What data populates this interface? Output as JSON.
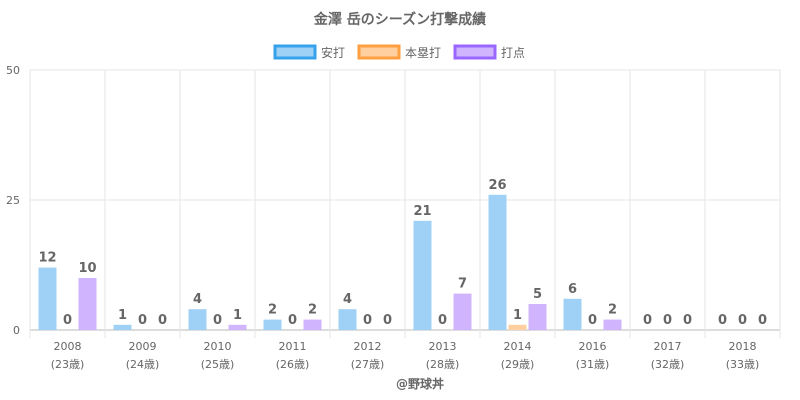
{
  "chart_data": {
    "type": "bar",
    "title": "金澤 岳のシーズン打撃成績",
    "categories": [
      "2008",
      "2009",
      "2010",
      "2011",
      "2012",
      "2013",
      "2014",
      "2016",
      "2017",
      "2018"
    ],
    "category_sub": [
      "(23歳)",
      "(24歳)",
      "(25歳)",
      "(26歳)",
      "(27歳)",
      "(28歳)",
      "(29歳)",
      "(31歳)",
      "(32歳)",
      "(33歳)"
    ],
    "series": [
      {
        "name": "安打",
        "values": [
          12,
          1,
          4,
          2,
          4,
          21,
          26,
          6,
          0,
          0
        ],
        "color": "#9fd0f5",
        "border": "#36a2eb"
      },
      {
        "name": "本塁打",
        "values": [
          0,
          0,
          0,
          0,
          0,
          0,
          1,
          0,
          0,
          0
        ],
        "color": "#ffcf9f",
        "border": "#ff9f40"
      },
      {
        "name": "打点",
        "values": [
          10,
          0,
          1,
          2,
          0,
          7,
          5,
          2,
          0,
          0
        ],
        "color": "#d0b4fe",
        "border": "#9966ff"
      }
    ],
    "ylim": [
      0,
      50
    ],
    "yticks": [
      0,
      25,
      50
    ],
    "grid": true,
    "legend_position": "top"
  },
  "footer": "@野球丼"
}
